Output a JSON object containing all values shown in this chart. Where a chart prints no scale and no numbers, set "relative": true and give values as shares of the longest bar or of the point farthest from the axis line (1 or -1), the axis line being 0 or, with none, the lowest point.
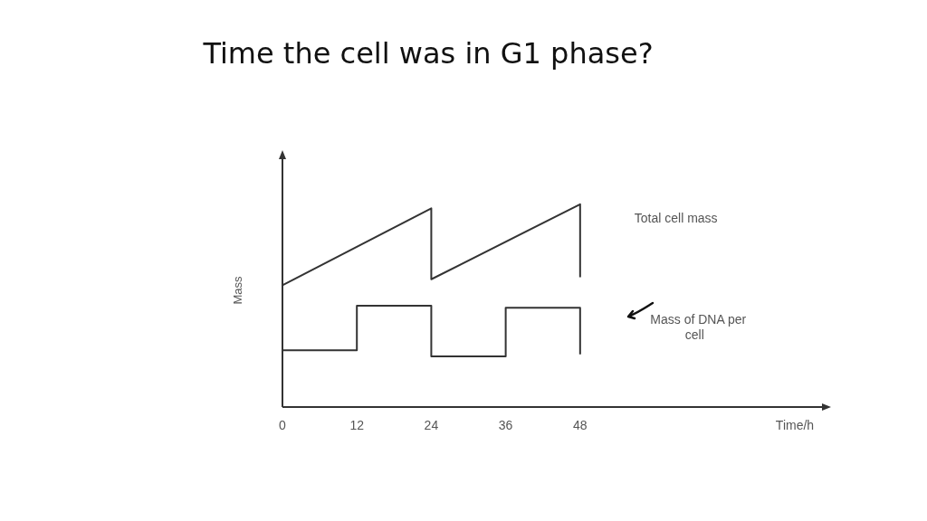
{
  "chart_data": {
    "type": "line",
    "title": "Time the cell was in G1 phase?",
    "xlabel": "Time/h",
    "ylabel": "Mass",
    "relative": true,
    "xlim": [
      0,
      87
    ],
    "xticks": [
      0,
      12,
      24,
      36,
      48
    ],
    "grid": false,
    "legend": false,
    "marker": "none",
    "line_style": "solid",
    "series": [
      {
        "name": "Total cell mass",
        "color": "#333333",
        "x": [
          0,
          24,
          24,
          48,
          48
        ],
        "values": [
          0.6,
          0.98,
          0.63,
          1,
          0.64
        ]
      },
      {
        "name": "Mass of DNA per cell",
        "color": "#333333",
        "x": [
          0,
          12,
          12,
          24,
          24,
          36,
          36,
          48,
          48
        ],
        "values": [
          0.28,
          0.28,
          0.5,
          0.5,
          0.25,
          0.25,
          0.49,
          0.49,
          0.26
        ]
      }
    ]
  }
}
